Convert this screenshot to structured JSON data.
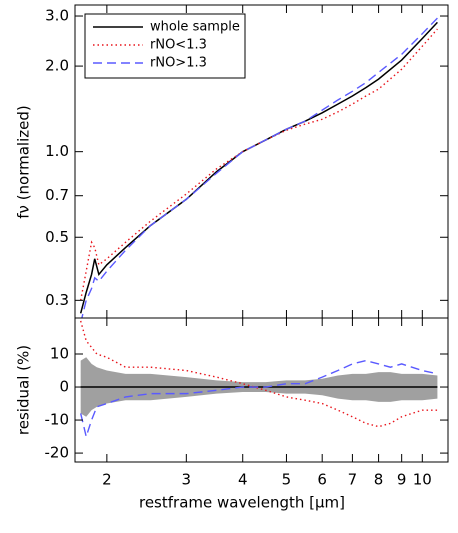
{
  "chart_data": [
    {
      "type": "line",
      "ylabel": "fν (normalized)",
      "xscale": "log",
      "yscale": "log",
      "xlim": [
        1.7,
        11.4
      ],
      "ylim": [
        0.26,
        3.28
      ],
      "yticks": [
        0.3,
        0.5,
        0.7,
        {
          "value": 1,
          "label": "1.0"
        },
        {
          "value": 2,
          "label": "2.0"
        },
        {
          "value": 3,
          "label": "3.0"
        }
      ],
      "legend": "upper left",
      "x": [
        1.75,
        1.8,
        1.85,
        1.88,
        1.92,
        2.0,
        2.2,
        2.5,
        3.0,
        3.5,
        4.0,
        4.5,
        5.0,
        5.5,
        6.0,
        6.5,
        7.0,
        7.5,
        8.0,
        9.0,
        10.0,
        10.8
      ],
      "series": [
        {
          "name": "whole sample",
          "color": "#000000",
          "dash": "solid",
          "values": [
            0.27,
            0.32,
            0.37,
            0.42,
            0.37,
            0.4,
            0.46,
            0.55,
            0.68,
            0.85,
            1.0,
            1.1,
            1.2,
            1.28,
            1.37,
            1.47,
            1.57,
            1.68,
            1.8,
            2.1,
            2.5,
            2.85
          ]
        },
        {
          "name": "rNO<1.3",
          "color": "#e8141b",
          "dash": "dotted",
          "values": [
            0.3,
            0.38,
            0.48,
            0.46,
            0.4,
            0.42,
            0.48,
            0.57,
            0.71,
            0.87,
            1.0,
            1.1,
            1.19,
            1.25,
            1.3,
            1.38,
            1.47,
            1.57,
            1.66,
            1.95,
            2.35,
            2.7
          ]
        },
        {
          "name": "rNO>1.3",
          "color": "#5a5aff",
          "dash": "dashed",
          "values": [
            0.25,
            0.3,
            0.33,
            0.36,
            0.35,
            0.38,
            0.45,
            0.55,
            0.68,
            0.84,
            1.0,
            1.1,
            1.2,
            1.28,
            1.4,
            1.52,
            1.63,
            1.75,
            1.9,
            2.2,
            2.6,
            2.95
          ]
        }
      ]
    },
    {
      "type": "line",
      "ylabel": "residual (%)",
      "xlabel": "restframe wavelength [μm]",
      "xscale": "log",
      "xlim": [
        1.7,
        11.4
      ],
      "ylim": [
        -22.7,
        20.9
      ],
      "xticks": [
        2,
        3,
        4,
        5,
        6,
        7,
        8,
        9,
        10
      ],
      "yticks": [
        -20,
        -10,
        0,
        10
      ],
      "x": [
        1.75,
        1.8,
        1.85,
        1.9,
        2.0,
        2.2,
        2.5,
        3.0,
        3.5,
        4.0,
        4.5,
        5.0,
        5.5,
        6.0,
        6.5,
        7.0,
        7.5,
        8.0,
        8.5,
        9.0,
        10.0,
        10.8
      ],
      "band": {
        "color": "#a0a0a0",
        "upper": [
          8,
          9,
          7,
          6,
          5,
          4,
          4,
          3,
          2,
          1.5,
          1.5,
          2,
          2,
          2.5,
          3.5,
          4,
          4,
          4.5,
          4.5,
          4,
          4,
          3.5
        ],
        "lower": [
          -8,
          -9,
          -7,
          -6,
          -5,
          -4,
          -4,
          -3,
          -2,
          -1.5,
          -1.5,
          -2,
          -2,
          -2.5,
          -3.5,
          -4,
          -4,
          -4.5,
          -4.5,
          -4,
          -4,
          -3.5
        ]
      },
      "series": [
        {
          "color": "#000000",
          "dash": "solid",
          "values": [
            0,
            0,
            0,
            0,
            0,
            0,
            0,
            0,
            0,
            0,
            0,
            0,
            0,
            0,
            0,
            0,
            0,
            0,
            0,
            0,
            0,
            0
          ]
        },
        {
          "color": "#e8141b",
          "dash": "dotted",
          "values": [
            20,
            14,
            12,
            10,
            9,
            6,
            6,
            5,
            3,
            1,
            -1,
            -3,
            -4,
            -5,
            -7,
            -9,
            -11,
            -12,
            -11,
            -9,
            -7,
            -7
          ]
        },
        {
          "color": "#5a5aff",
          "dash": "dashed",
          "values": [
            -8,
            -15,
            -10,
            -6,
            -5,
            -3,
            -2,
            -2,
            -1,
            0,
            0,
            1,
            1,
            3,
            5,
            7,
            8,
            7,
            6,
            7,
            5,
            4
          ]
        }
      ]
    }
  ]
}
